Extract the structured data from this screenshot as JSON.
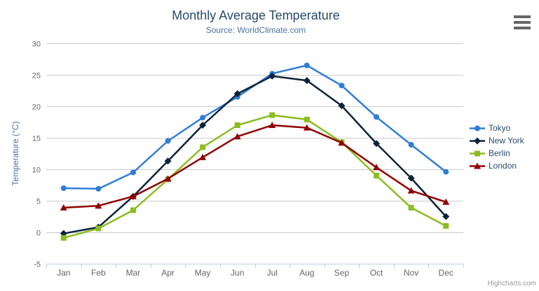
{
  "header": {
    "menu_icon": "hamburger-menu"
  },
  "credits": {
    "label": "Highcharts.com"
  },
  "colors": {
    "title": "#274b6d",
    "subtitle": "#4d759e",
    "axis_title": "#4d759e",
    "tick_label": "#666666",
    "grid_line": "#cccccc",
    "axis_line": "#c0d0e0",
    "legend_text": "#274b6d"
  },
  "chart_data": {
    "type": "line",
    "title": "Monthly Average Temperature",
    "subtitle": "Source: WorldClimate.com",
    "categories": [
      "Jan",
      "Feb",
      "Mar",
      "Apr",
      "May",
      "Jun",
      "Jul",
      "Aug",
      "Sep",
      "Oct",
      "Nov",
      "Dec"
    ],
    "xlabel": "",
    "ylabel": "Temperature (°C)",
    "ylim": [
      -5,
      30
    ],
    "ytick_step": 5,
    "grid": true,
    "legend_position": "right",
    "series": [
      {
        "name": "Tokyo",
        "color": "#2f7ed8",
        "marker": "circle",
        "values": [
          7.0,
          6.9,
          9.5,
          14.5,
          18.2,
          21.5,
          25.2,
          26.5,
          23.3,
          18.3,
          13.9,
          9.6
        ]
      },
      {
        "name": "New York",
        "color": "#0d233a",
        "marker": "diamond",
        "values": [
          -0.2,
          0.8,
          5.7,
          11.3,
          17.0,
          22.0,
          24.8,
          24.1,
          20.1,
          14.1,
          8.6,
          2.5
        ]
      },
      {
        "name": "Berlin",
        "color": "#8bbc21",
        "marker": "square",
        "values": [
          -0.9,
          0.6,
          3.5,
          8.4,
          13.5,
          17.0,
          18.6,
          17.9,
          14.3,
          9.0,
          3.9,
          1.0
        ]
      },
      {
        "name": "London",
        "color": "#910000",
        "marker": "triangle",
        "values": [
          3.9,
          4.2,
          5.7,
          8.5,
          11.9,
          15.2,
          17.0,
          16.6,
          14.2,
          10.3,
          6.6,
          4.8
        ]
      }
    ]
  }
}
